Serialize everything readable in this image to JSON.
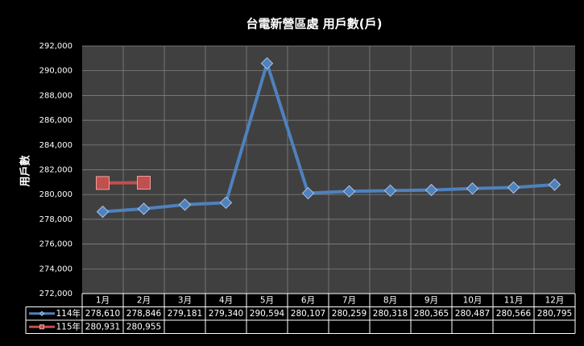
{
  "chart_data": {
    "type": "line",
    "title": "台電新營區處 用戶數(戶)",
    "y_label": "用戶數",
    "categories": [
      "1月",
      "2月",
      "3月",
      "4月",
      "5月",
      "6月",
      "7月",
      "8月",
      "9月",
      "10月",
      "11月",
      "12月"
    ],
    "series": [
      {
        "name": "114年",
        "color": "#4f81bd",
        "marker": "diamond",
        "values": [
          278610,
          278846,
          279181,
          279340,
          290594,
          280107,
          280259,
          280318,
          280365,
          280487,
          280566,
          280795
        ],
        "value_labels": [
          "278,610",
          "278,846",
          "279,181",
          "279,340",
          "290,594",
          "280,107",
          "280,259",
          "280,318",
          "280,365",
          "280,487",
          "280,566",
          "280,795"
        ]
      },
      {
        "name": "115年",
        "color": "#c0504d",
        "marker": "square",
        "values": [
          280931,
          280955,
          null,
          null,
          null,
          null,
          null,
          null,
          null,
          null,
          null,
          null
        ],
        "value_labels": [
          "280,931",
          "280,955",
          null,
          null,
          null,
          null,
          null,
          null,
          null,
          null,
          null,
          null
        ]
      }
    ],
    "ylim": [
      272000,
      292000
    ],
    "yticks": [
      {
        "value": 272000,
        "label": "272,000"
      },
      {
        "value": 274000,
        "label": "274,000"
      },
      {
        "value": 276000,
        "label": "276,000"
      },
      {
        "value": 278000,
        "label": "278,000"
      },
      {
        "value": 280000,
        "label": "280,000"
      },
      {
        "value": 282000,
        "label": "282,000"
      },
      {
        "value": 284000,
        "label": "284,000"
      },
      {
        "value": 286000,
        "label": "286,000"
      },
      {
        "value": 288000,
        "label": "288,000"
      },
      {
        "value": 290000,
        "label": "290,000"
      },
      {
        "value": 292000,
        "label": "292,000"
      }
    ],
    "grid": true
  }
}
